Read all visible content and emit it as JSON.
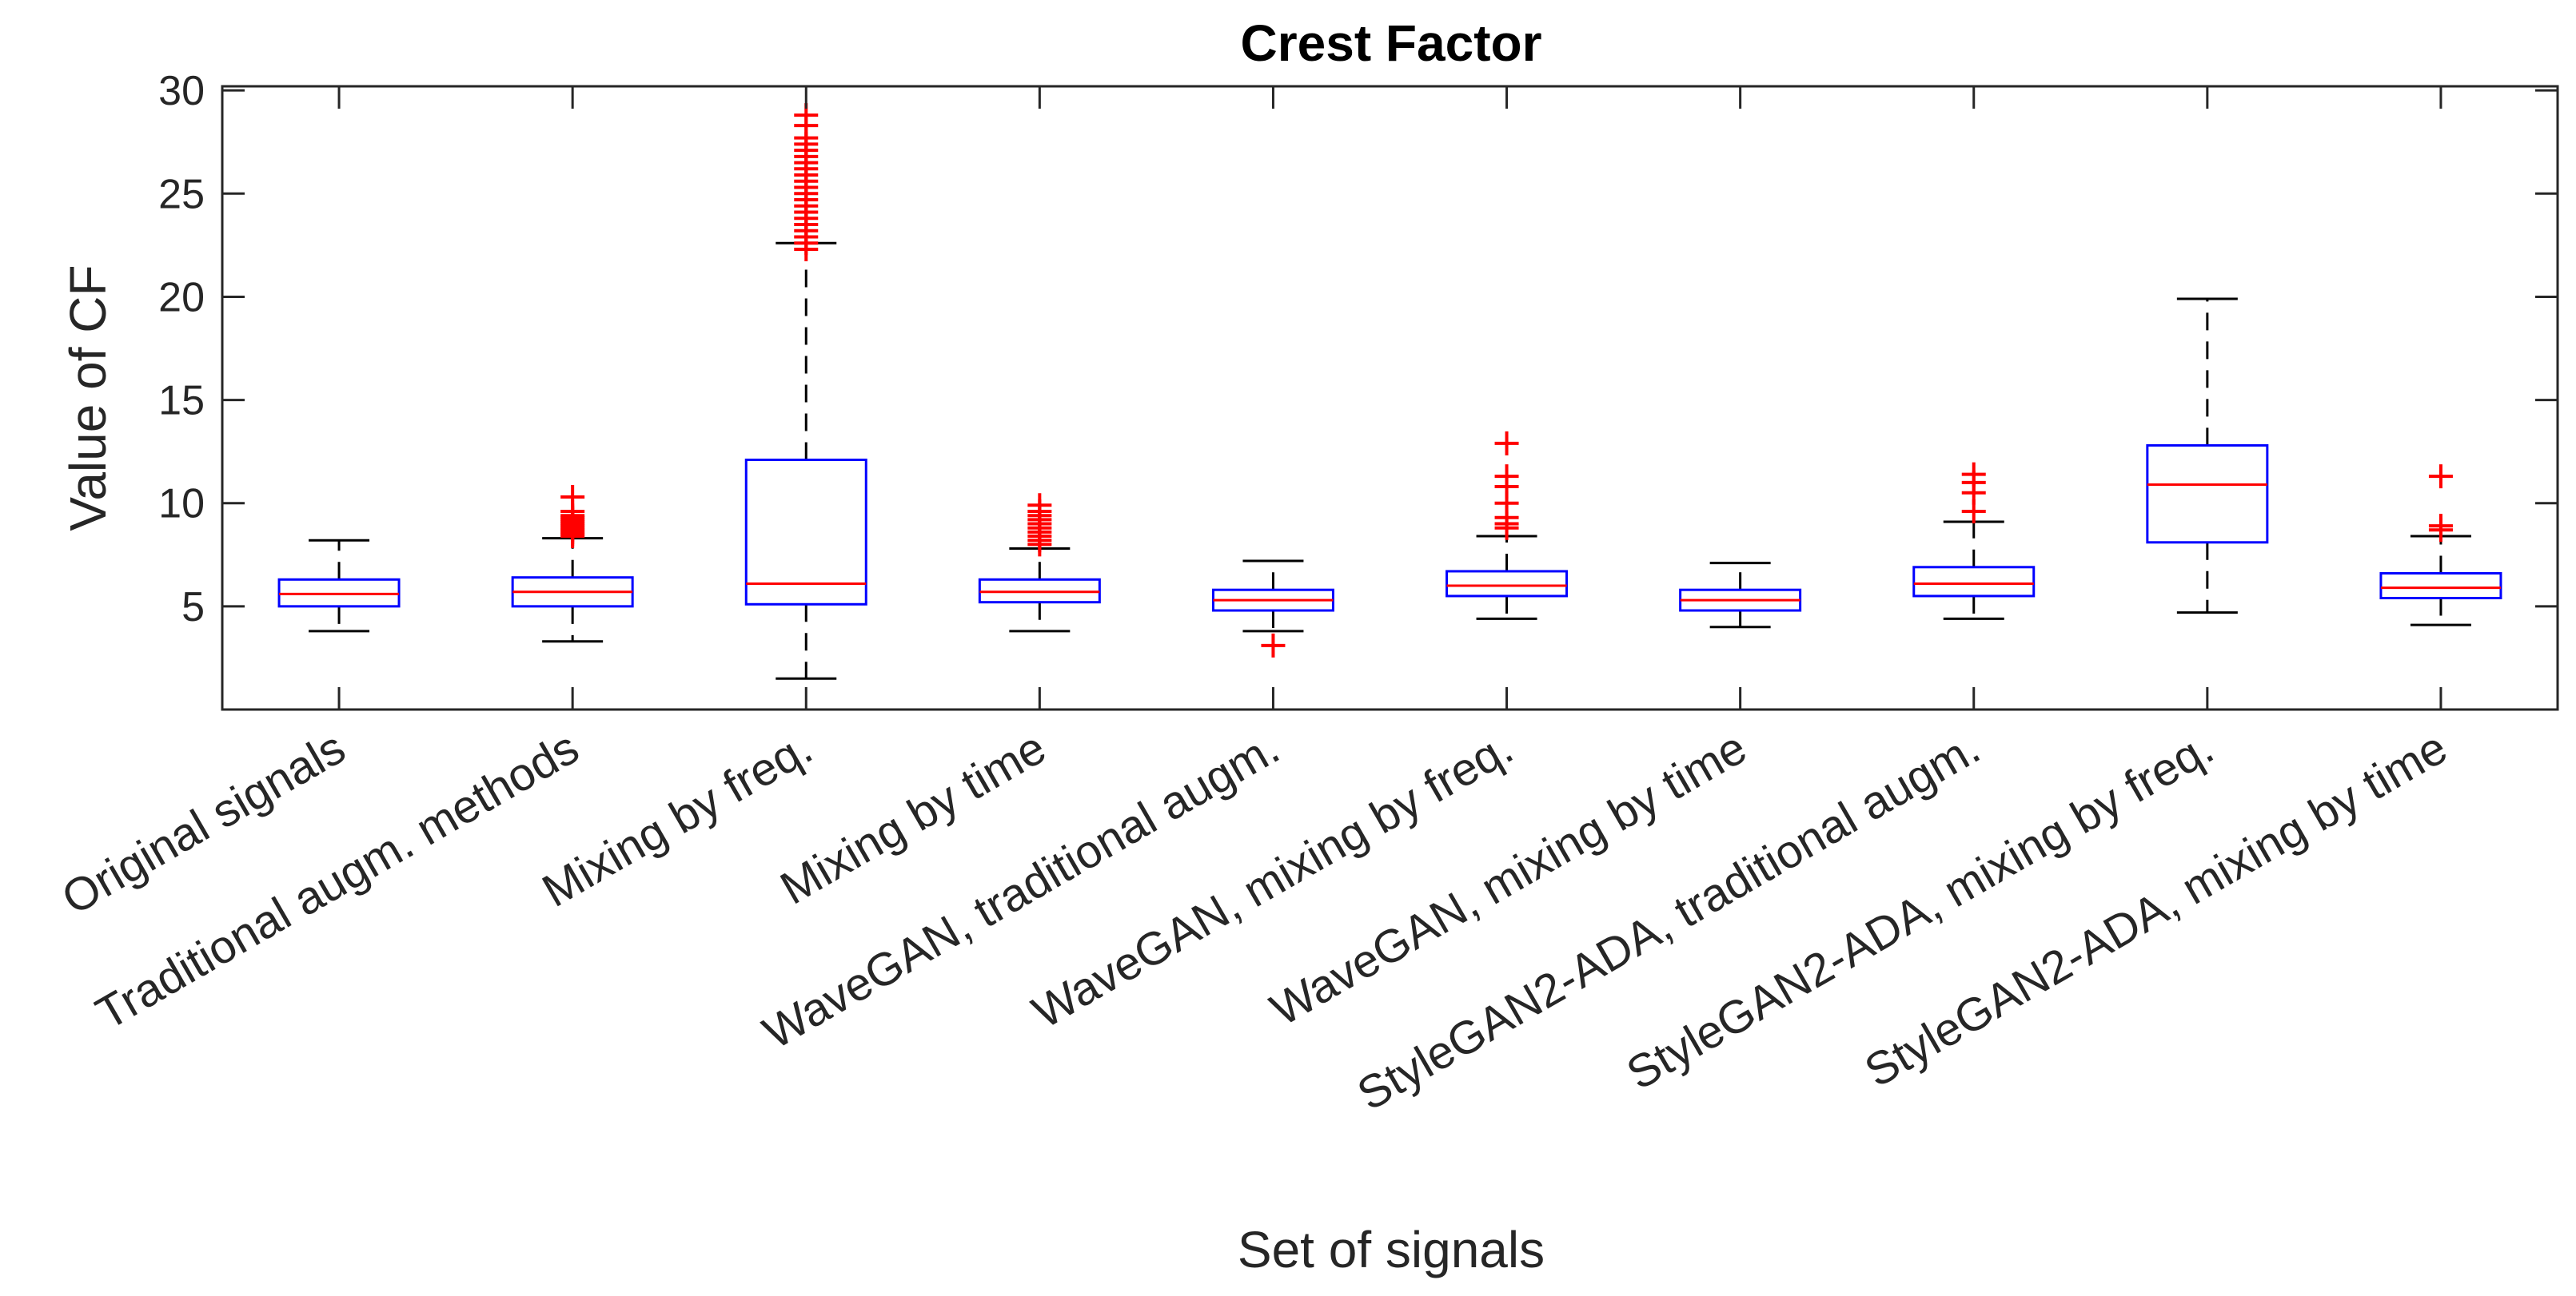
{
  "chart_data": {
    "type": "box",
    "title": "Crest Factor",
    "xlabel": "Set of signals",
    "ylabel": "Value of  CF",
    "ylim": [
      0,
      30.2
    ],
    "yticks": [
      5,
      10,
      15,
      20,
      25,
      30
    ],
    "grid": false,
    "colors": {
      "box": "#0000ff",
      "median": "#ff0000",
      "whisker": "#000000",
      "outlier": "#ff0000",
      "axis": "#262626"
    },
    "categories": [
      "Original signals",
      "Traditional augm. methods",
      "Mixing by freq.",
      "Mixing by time",
      "WaveGAN, traditional augm.",
      "WaveGAN, mixing by freq.",
      "WaveGAN, mixing by time",
      "StyleGAN2-ADA, traditional augm.",
      "StyleGAN2-ADA, mixing by freq.",
      "StyleGAN2-ADA, mixing by time"
    ],
    "boxes": [
      {
        "whisker_low": 3.8,
        "q1": 5.0,
        "median": 5.6,
        "q3": 6.3,
        "whisker_high": 8.2,
        "outliers": []
      },
      {
        "whisker_low": 3.3,
        "q1": 5.0,
        "median": 5.7,
        "q3": 6.4,
        "whisker_high": 8.3,
        "outliers": [
          8.4,
          8.5,
          8.6,
          8.7,
          8.8,
          8.9,
          9.0,
          9.1,
          9.2,
          9.3,
          9.4,
          9.6,
          10.3
        ]
      },
      {
        "whisker_low": 1.5,
        "q1": 5.1,
        "median": 6.1,
        "q3": 12.1,
        "whisker_high": 22.6,
        "outliers": [
          22.3,
          22.6,
          22.9,
          23.2,
          23.5,
          23.8,
          24.1,
          24.4,
          24.7,
          25.0,
          25.3,
          25.6,
          25.9,
          26.2,
          26.5,
          26.8,
          27.1,
          27.4,
          27.7,
          28.3,
          28.8
        ]
      },
      {
        "whisker_low": 3.8,
        "q1": 5.2,
        "median": 5.7,
        "q3": 6.3,
        "whisker_high": 7.8,
        "outliers": [
          8.0,
          8.2,
          8.4,
          8.6,
          8.8,
          9.0,
          9.2,
          9.4,
          9.6,
          9.9
        ]
      },
      {
        "whisker_low": 3.8,
        "q1": 4.8,
        "median": 5.3,
        "q3": 5.8,
        "whisker_high": 7.2,
        "outliers": [
          3.1
        ]
      },
      {
        "whisker_low": 4.4,
        "q1": 5.5,
        "median": 6.0,
        "q3": 6.7,
        "whisker_high": 8.4,
        "outliers": [
          8.8,
          9.0,
          9.3,
          10.0,
          10.8,
          11.3,
          12.9
        ]
      },
      {
        "whisker_low": 4.0,
        "q1": 4.8,
        "median": 5.3,
        "q3": 5.8,
        "whisker_high": 7.1,
        "outliers": []
      },
      {
        "whisker_low": 4.4,
        "q1": 5.5,
        "median": 6.1,
        "q3": 6.9,
        "whisker_high": 9.1,
        "outliers": [
          9.6,
          10.5,
          11.0,
          11.4
        ]
      },
      {
        "whisker_low": 4.7,
        "q1": 8.1,
        "median": 10.9,
        "q3": 12.8,
        "whisker_high": 19.9,
        "outliers": []
      },
      {
        "whisker_low": 4.1,
        "q1": 5.4,
        "median": 5.9,
        "q3": 6.6,
        "whisker_high": 8.4,
        "outliers": [
          8.7,
          8.9,
          11.3
        ]
      }
    ]
  }
}
